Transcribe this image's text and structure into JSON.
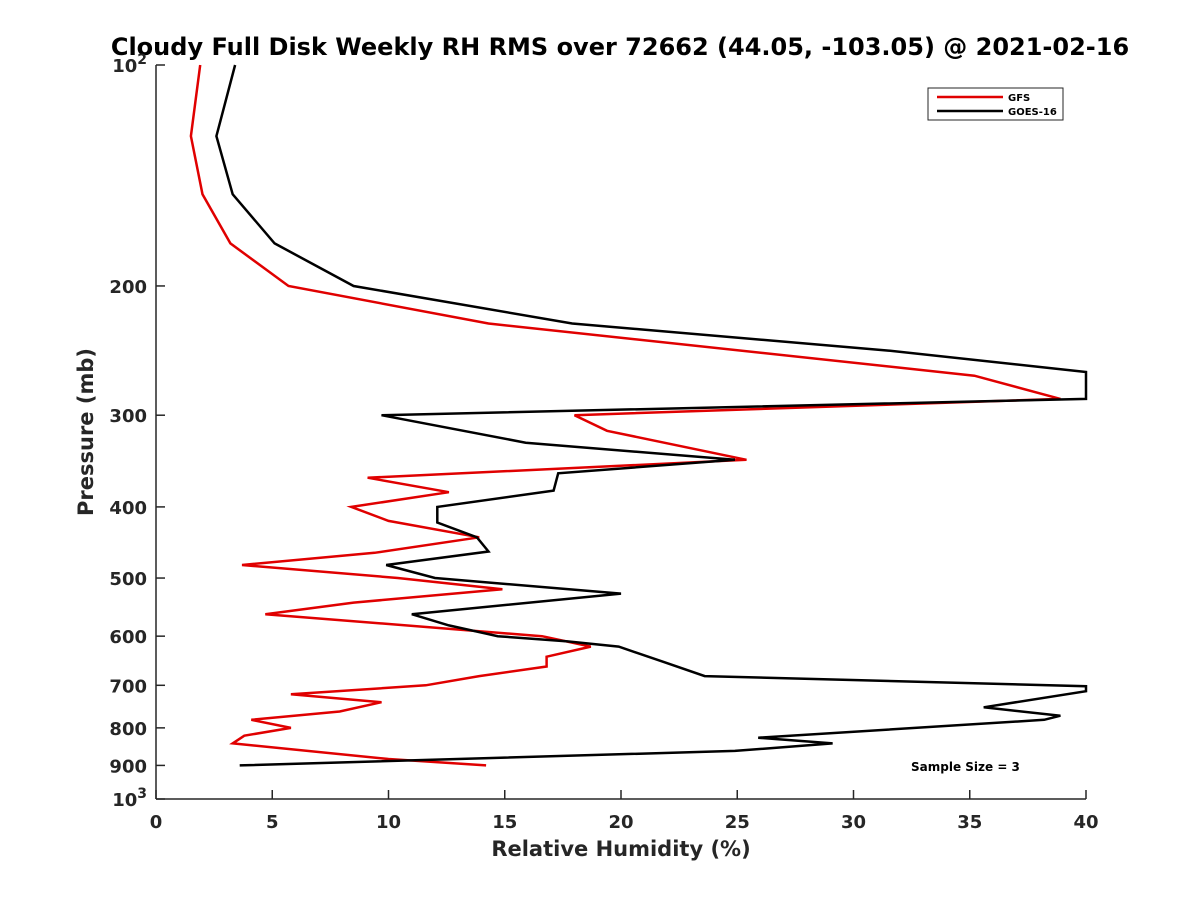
{
  "chart_data": {
    "type": "line",
    "title": "Cloudy Full Disk Weekly RH RMS over 72662 (44.05, -103.05) @ 2021-02-16",
    "xlabel": "Relative Humidity (%)",
    "ylabel": "Pressure (mb)",
    "xlim": [
      0,
      40
    ],
    "ylim": [
      100,
      1000
    ],
    "y_scale": "log",
    "y_reversed": true,
    "grid": false,
    "legend_position": "top-right",
    "x_ticks": [
      0,
      5,
      10,
      15,
      20,
      25,
      30,
      35,
      40
    ],
    "x_tick_labels": [
      "0",
      "5",
      "10",
      "15",
      "20",
      "25",
      "30",
      "35",
      "40"
    ],
    "y_ticks": [
      100,
      200,
      300,
      400,
      500,
      600,
      700,
      800,
      900,
      1000
    ],
    "y_tick_labels": [
      {
        "base": "10",
        "exp": "2"
      },
      {
        "base": "200",
        "exp": ""
      },
      {
        "base": "300",
        "exp": ""
      },
      {
        "base": "400",
        "exp": ""
      },
      {
        "base": "500",
        "exp": ""
      },
      {
        "base": "600",
        "exp": ""
      },
      {
        "base": "700",
        "exp": ""
      },
      {
        "base": "800",
        "exp": ""
      },
      {
        "base": "900",
        "exp": ""
      },
      {
        "base": "10",
        "exp": "3"
      }
    ],
    "annotation": "Sample Size = 3",
    "series": [
      {
        "name": "GFS",
        "color": "#e00000",
        "points": [
          [
            1.9,
            100
          ],
          [
            1.5,
            125
          ],
          [
            2.0,
            150
          ],
          [
            3.2,
            175
          ],
          [
            5.7,
            200
          ],
          [
            14.3,
            225
          ],
          [
            35.2,
            265
          ],
          [
            38.9,
            285
          ],
          [
            18.0,
            300
          ],
          [
            19.4,
            315
          ],
          [
            25.4,
            345
          ],
          [
            9.1,
            365
          ],
          [
            12.6,
            382
          ],
          [
            8.4,
            400
          ],
          [
            10.0,
            418
          ],
          [
            13.9,
            440
          ],
          [
            9.4,
            462
          ],
          [
            3.7,
            480
          ],
          [
            10.4,
            500
          ],
          [
            14.9,
            518
          ],
          [
            8.5,
            540
          ],
          [
            4.7,
            560
          ],
          [
            16.6,
            600
          ],
          [
            18.7,
            620
          ],
          [
            16.8,
            640
          ],
          [
            16.8,
            660
          ],
          [
            13.9,
            680
          ],
          [
            11.6,
            700
          ],
          [
            5.8,
            720
          ],
          [
            9.7,
            738
          ],
          [
            7.9,
            760
          ],
          [
            4.1,
            780
          ],
          [
            5.8,
            800
          ],
          [
            3.8,
            820
          ],
          [
            3.3,
            840
          ],
          [
            10.0,
            882
          ],
          [
            14.2,
            900
          ]
        ]
      },
      {
        "name": "GOES-16",
        "color": "#000000",
        "points": [
          [
            3.4,
            100
          ],
          [
            2.9,
            115
          ],
          [
            2.6,
            125
          ],
          [
            3.3,
            150
          ],
          [
            5.1,
            175
          ],
          [
            8.5,
            200
          ],
          [
            17.9,
            225
          ],
          [
            31.5,
            245
          ],
          [
            40,
            262
          ],
          [
            40,
            285
          ],
          [
            9.7,
            300
          ],
          [
            15.9,
            327
          ],
          [
            24.9,
            345
          ],
          [
            17.3,
            360
          ],
          [
            17.1,
            380
          ],
          [
            12.1,
            400
          ],
          [
            12.1,
            420
          ],
          [
            13.8,
            440
          ],
          [
            14.3,
            460
          ],
          [
            9.9,
            480
          ],
          [
            12.0,
            500
          ],
          [
            20.0,
            525
          ],
          [
            11.0,
            560
          ],
          [
            12.6,
            580
          ],
          [
            14.7,
            600
          ],
          [
            17.7,
            610
          ],
          [
            19.9,
            620
          ],
          [
            21.8,
            650
          ],
          [
            23.6,
            680
          ],
          [
            40,
            702
          ],
          [
            40,
            713
          ],
          [
            35.6,
            750
          ],
          [
            38.9,
            770
          ],
          [
            38.2,
            780
          ],
          [
            25.9,
            825
          ],
          [
            29.1,
            840
          ],
          [
            24.9,
            860
          ],
          [
            3.6,
            900
          ]
        ]
      }
    ]
  }
}
